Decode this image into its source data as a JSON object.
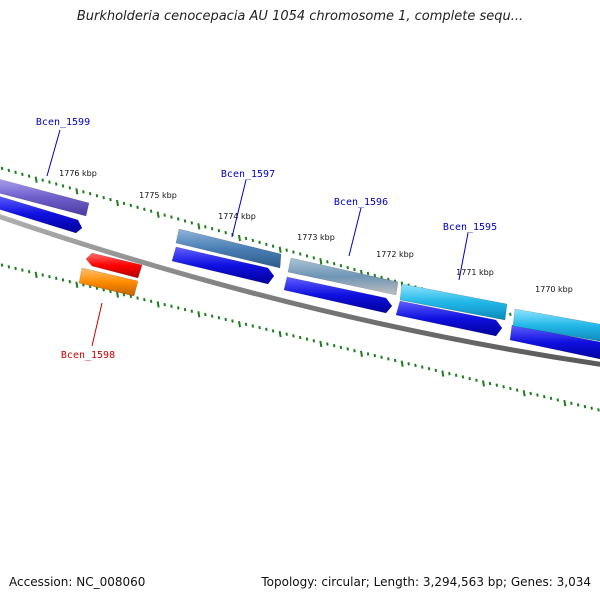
{
  "title": "Burkholderia cenocepacia AU 1054 chromosome 1, complete sequ...",
  "footer": {
    "accession": "Accession: NC_008060",
    "summary": "Topology: circular; Length: 3,294,563 bp; Genes: 3,034"
  },
  "colors": {
    "backbone": "#808080",
    "tick": "#1e7d1e",
    "forward_label": "#0000c0",
    "reverse_label": "#cc0000",
    "cds_blue": "#1010e0"
  },
  "ticks": [
    {
      "label": "1776 kbp"
    },
    {
      "label": "1775 kbp"
    },
    {
      "label": "1774 kbp"
    },
    {
      "label": "1773 kbp"
    },
    {
      "label": "1772 kbp"
    },
    {
      "label": "1771 kbp"
    },
    {
      "label": "1770 kbp"
    }
  ],
  "genes": [
    {
      "name": "Bcen_1599",
      "strand": "forward",
      "color": "#7060cc"
    },
    {
      "name": "Bcen_1598",
      "strand": "reverse",
      "color": "#ff8c00"
    },
    {
      "name": "Bcen_1597",
      "strand": "forward",
      "color": "#4a7fb5"
    },
    {
      "name": "Bcen_1596",
      "strand": "forward",
      "color": "#5f8fb0"
    },
    {
      "name": "Bcen_1595",
      "strand": "forward",
      "color": "#22b8e8"
    },
    {
      "name": "",
      "strand": "forward",
      "color": "#22b8e8"
    }
  ]
}
